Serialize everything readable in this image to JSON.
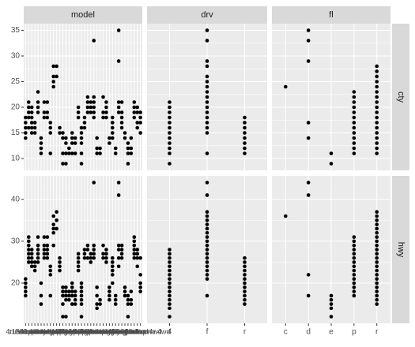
{
  "chart_data": {
    "type": "scatter",
    "color": "#000000",
    "grid": true,
    "rows": [
      {
        "label": "cty",
        "ylim": [
          7.7,
          36.3
        ],
        "yticks": [
          10,
          15,
          20,
          25,
          30,
          35
        ]
      },
      {
        "label": "hwy",
        "ylim": [
          10.4,
          45.6
        ],
        "yticks": [
          20,
          30,
          40
        ]
      }
    ],
    "columns": [
      {
        "label": "model",
        "categories": [
          "4runner 4wd",
          "a4",
          "a4 quattro",
          "a6 quattro",
          "altima",
          "c1500 suburban 2wd",
          "camry",
          "camry solara",
          "caravan 2wd",
          "civic",
          "corolla",
          "corvette",
          "dakota pickup 4wd",
          "durango 4wd",
          "expedition 2wd",
          "explorer 4wd",
          "f150 pickup 4wd",
          "forester awd",
          "grand cherokee 4wd",
          "grand prix",
          "gti",
          "impreza awd",
          "jetta",
          "k1500 tahoe 4wd",
          "land cruiser wagon 4wd",
          "malibu",
          "maxima",
          "mountaineer 4wd",
          "mustang",
          "navigator 2wd",
          "new beetle",
          "passat",
          "pathfinder 4wd",
          "ram 1500 pickup 4wd",
          "range rover",
          "sonata",
          "tiburon",
          "toyota tacoma 4wd"
        ],
        "values": [
          [
            [
              14,
              15,
              16,
              17,
              18
            ],
            [
              16,
              18,
              19,
              20,
              21
            ],
            [
              15,
              16,
              17,
              18,
              19,
              20
            ],
            [
              15,
              16,
              17
            ],
            [
              19,
              20,
              21,
              23
            ],
            [
              11,
              12,
              13,
              14
            ],
            [
              18,
              19,
              21
            ],
            [
              18,
              19,
              21
            ],
            [
              11,
              15,
              16,
              17
            ],
            [
              24,
              25,
              26,
              28
            ],
            [
              26,
              28
            ],
            [
              15,
              16
            ],
            [
              9,
              11,
              14,
              15
            ],
            [
              9,
              11,
              13,
              14
            ],
            [
              11,
              12
            ],
            [
              11,
              13,
              14,
              15
            ],
            [
              11,
              13,
              14
            ],
            [
              18,
              19,
              20
            ],
            [
              9,
              11,
              13,
              14,
              15,
              16
            ],
            [
              16,
              17,
              18
            ],
            [
              19,
              20,
              21,
              22
            ],
            [
              19,
              20,
              21
            ],
            [
              18,
              19,
              20,
              21,
              22,
              33
            ],
            [
              11,
              12,
              14
            ],
            [
              11,
              12
            ],
            [
              18,
              19,
              22
            ],
            [
              18,
              19,
              20,
              21
            ],
            [
              13,
              14
            ],
            [
              14,
              15,
              16,
              17,
              18
            ],
            [
              11,
              12
            ],
            [
              19,
              20,
              21,
              29,
              35
            ],
            [
              16,
              17,
              18,
              19,
              21
            ],
            [
              14,
              15
            ],
            [
              9,
              11,
              12,
              13
            ],
            [
              11,
              12,
              14
            ],
            [
              18,
              19,
              20,
              21
            ],
            [
              16,
              17,
              19,
              20
            ],
            [
              15,
              17,
              18,
              19
            ]
          ],
          [
            [
              17,
              18,
              19,
              20,
              21
            ],
            [
              25,
              26,
              27,
              28,
              29,
              30,
              31
            ],
            [
              24,
              25,
              26,
              27,
              28
            ],
            [
              23,
              24,
              25
            ],
            [
              25,
              26,
              27,
              28,
              29,
              31
            ],
            [
              15,
              17,
              20
            ],
            [
              26,
              27,
              28,
              29,
              31
            ],
            [
              26,
              27,
              28,
              29,
              31
            ],
            [
              17,
              22,
              23,
              24
            ],
            [
              29,
              32,
              33,
              34,
              36
            ],
            [
              33,
              35,
              37
            ],
            [
              23,
              24,
              25,
              26
            ],
            [
              12,
              15,
              17,
              18,
              19
            ],
            [
              12,
              16,
              17,
              18,
              19
            ],
            [
              16,
              17,
              18
            ],
            [
              15,
              17,
              18,
              19,
              20
            ],
            [
              15,
              16,
              17,
              18
            ],
            [
              23,
              24,
              25,
              26,
              27
            ],
            [
              12,
              15,
              16,
              17,
              18,
              19,
              20
            ],
            [
              26,
              27,
              28
            ],
            [
              26,
              28,
              29
            ],
            [
              25,
              26,
              27
            ],
            [
              26,
              27,
              28,
              29,
              44
            ],
            [
              14,
              15,
              17,
              19
            ],
            [
              15,
              16
            ],
            [
              26,
              27,
              29
            ],
            [
              25,
              26,
              27,
              28
            ],
            [
              16,
              17,
              18,
              19
            ],
            [
              20,
              22,
              23,
              24,
              25,
              26
            ],
            [
              15,
              16,
              17
            ],
            [
              24,
              26,
              28,
              29,
              41,
              44
            ],
            [
              26,
              27,
              28,
              29
            ],
            [
              17,
              18,
              19
            ],
            [
              12,
              15,
              16,
              17
            ],
            [
              15,
              16,
              18
            ],
            [
              26,
              27,
              28,
              29,
              30,
              31
            ],
            [
              24,
              26,
              27,
              28
            ],
            [
              18,
              19,
              20,
              22,
              26
            ]
          ]
        ]
      },
      {
        "label": "drv",
        "categories": [
          "4",
          "f",
          "r"
        ],
        "values": [
          [
            [
              9,
              11,
              12,
              13,
              14,
              15,
              16,
              17,
              18,
              19,
              20,
              21
            ],
            [
              11,
              15,
              16,
              17,
              18,
              19,
              20,
              21,
              22,
              23,
              24,
              25,
              26,
              28,
              29,
              33,
              35
            ],
            [
              11,
              12,
              13,
              14,
              15,
              16,
              17,
              18
            ]
          ],
          [
            [
              12,
              14,
              15,
              16,
              17,
              18,
              19,
              20,
              21,
              22,
              23,
              24,
              25,
              26,
              27,
              28
            ],
            [
              17,
              21,
              22,
              23,
              24,
              25,
              26,
              27,
              28,
              29,
              30,
              31,
              32,
              33,
              34,
              35,
              36,
              37,
              41,
              44
            ],
            [
              15,
              16,
              17,
              18,
              19,
              20,
              21,
              22,
              23,
              24,
              25,
              26
            ]
          ]
        ]
      },
      {
        "label": "fl",
        "categories": [
          "c",
          "d",
          "e",
          "p",
          "r"
        ],
        "values": [
          [
            [
              24
            ],
            [
              14,
              17,
              29,
              33,
              35
            ],
            [
              9,
              11
            ],
            [
              11,
              12,
              13,
              14,
              15,
              16,
              17,
              18,
              19,
              20,
              21,
              22,
              23
            ],
            [
              11,
              12,
              13,
              14,
              15,
              16,
              17,
              18,
              19,
              20,
              21,
              22,
              23,
              24,
              25,
              26,
              27,
              28
            ]
          ],
          [
            [
              36
            ],
            [
              17,
              22,
              41,
              44
            ],
            [
              12,
              14,
              15,
              16,
              17
            ],
            [
              17,
              18,
              19,
              20,
              21,
              22,
              23,
              24,
              25,
              26,
              27,
              28,
              29,
              30,
              31
            ],
            [
              15,
              16,
              17,
              18,
              19,
              20,
              21,
              22,
              23,
              24,
              25,
              26,
              27,
              28,
              29,
              30,
              31,
              32,
              33,
              34,
              35,
              36,
              37
            ]
          ]
        ]
      }
    ]
  }
}
